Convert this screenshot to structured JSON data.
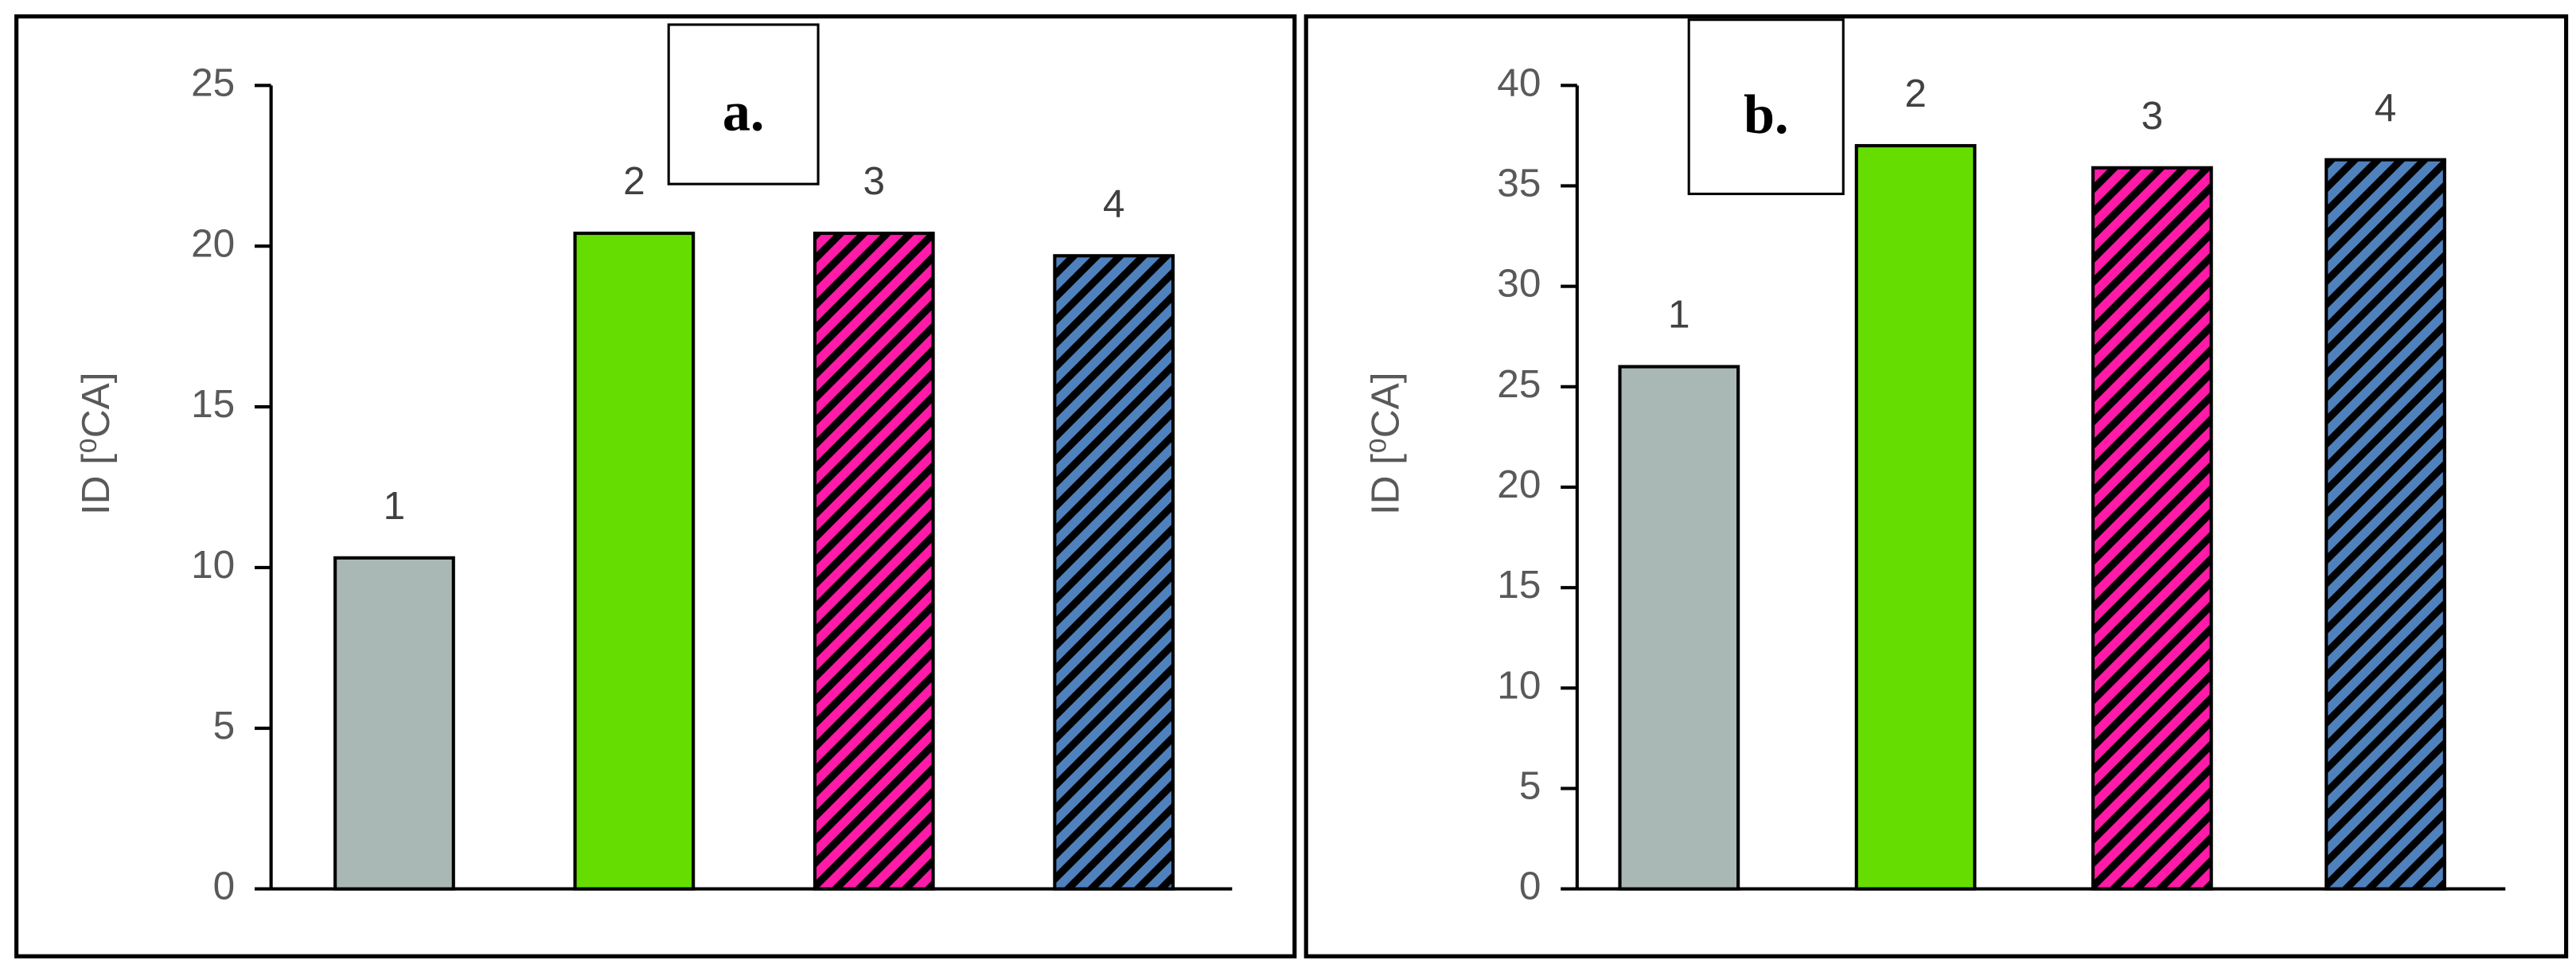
{
  "chart_data": [
    {
      "type": "bar",
      "panel_label": "a.",
      "y_label": "ID [⁰CA]",
      "categories": [
        "1",
        "2",
        "3",
        "4"
      ],
      "values": [
        10.3,
        20.4,
        20.4,
        19.7
      ],
      "colors": [
        "#a9b8b4",
        "#66dd00",
        "#ff1aa8",
        "#4f81bd"
      ],
      "hatched": [
        false,
        false,
        true,
        true
      ],
      "ylim": [
        0,
        25
      ],
      "yticks": [
        0,
        5,
        10,
        15,
        20,
        25
      ]
    },
    {
      "type": "bar",
      "panel_label": "b.",
      "y_label": "ID [⁰CA]",
      "categories": [
        "1",
        "2",
        "3",
        "4"
      ],
      "values": [
        26,
        37,
        35.9,
        36.3
      ],
      "colors": [
        "#a9b8b4",
        "#66dd00",
        "#ff1aa8",
        "#4f81bd"
      ],
      "hatched": [
        false,
        false,
        true,
        true
      ],
      "ylim": [
        0,
        40
      ],
      "yticks": [
        0,
        5,
        10,
        15,
        20,
        25,
        30,
        35,
        40
      ]
    }
  ]
}
